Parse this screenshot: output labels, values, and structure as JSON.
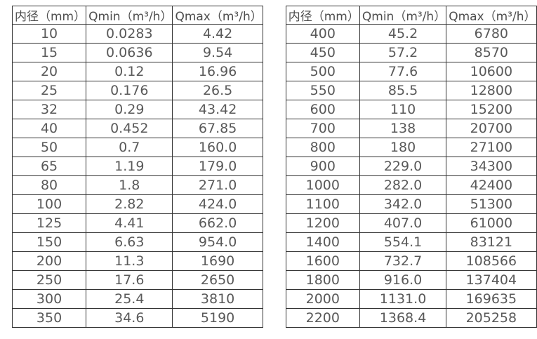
{
  "page": {
    "background_color": "#ffffff",
    "border_color": "#333333",
    "text_color": "#595959"
  },
  "tables": [
    {
      "name": "small-diameter-flow-table",
      "headers": {
        "diameter": "内径（mm）",
        "qmin": "Qmin（m³/h）",
        "qmax": "Qmax（m³/h）"
      },
      "rows": [
        [
          "10",
          "0.0283",
          "4.42"
        ],
        [
          "15",
          "0.0636",
          "9.54"
        ],
        [
          "20",
          "0.12",
          "16.96"
        ],
        [
          "25",
          "0.176",
          "26.5"
        ],
        [
          "32",
          "0.29",
          "43.42"
        ],
        [
          "40",
          "0.452",
          "67.85"
        ],
        [
          "50",
          "0.7",
          "160.0"
        ],
        [
          "65",
          "1.19",
          "179.0"
        ],
        [
          "80",
          "1.8",
          "271.0"
        ],
        [
          "100",
          "2.82",
          "424.0"
        ],
        [
          "125",
          "4.41",
          "662.0"
        ],
        [
          "150",
          "6.63",
          "954.0"
        ],
        [
          "200",
          "11.3",
          "1690"
        ],
        [
          "250",
          "17.6",
          "2650"
        ],
        [
          "300",
          "25.4",
          "3810"
        ],
        [
          "350",
          "34.6",
          "5190"
        ]
      ]
    },
    {
      "name": "large-diameter-flow-table",
      "headers": {
        "diameter": "内径（mm）",
        "qmin": "Qmin（m³/h）",
        "qmax": "Qmax（m³/h）"
      },
      "rows": [
        [
          "400",
          "45.2",
          "6780"
        ],
        [
          "450",
          "57.2",
          "8570"
        ],
        [
          "500",
          "77.6",
          "10600"
        ],
        [
          "550",
          "85.5",
          "12800"
        ],
        [
          "600",
          "110",
          "15200"
        ],
        [
          "700",
          "138",
          "20700"
        ],
        [
          "800",
          "180",
          "27100"
        ],
        [
          "900",
          "229.0",
          "34300"
        ],
        [
          "1000",
          "282.0",
          "42400"
        ],
        [
          "1100",
          "342.0",
          "51300"
        ],
        [
          "1200",
          "407.0",
          "61000"
        ],
        [
          "1400",
          "554.1",
          "83121"
        ],
        [
          "1600",
          "732.7",
          "108566"
        ],
        [
          "1800",
          "916.0",
          "137404"
        ],
        [
          "2000",
          "1131.0",
          "169635"
        ],
        [
          "2200",
          "1368.4",
          "205258"
        ]
      ]
    }
  ]
}
